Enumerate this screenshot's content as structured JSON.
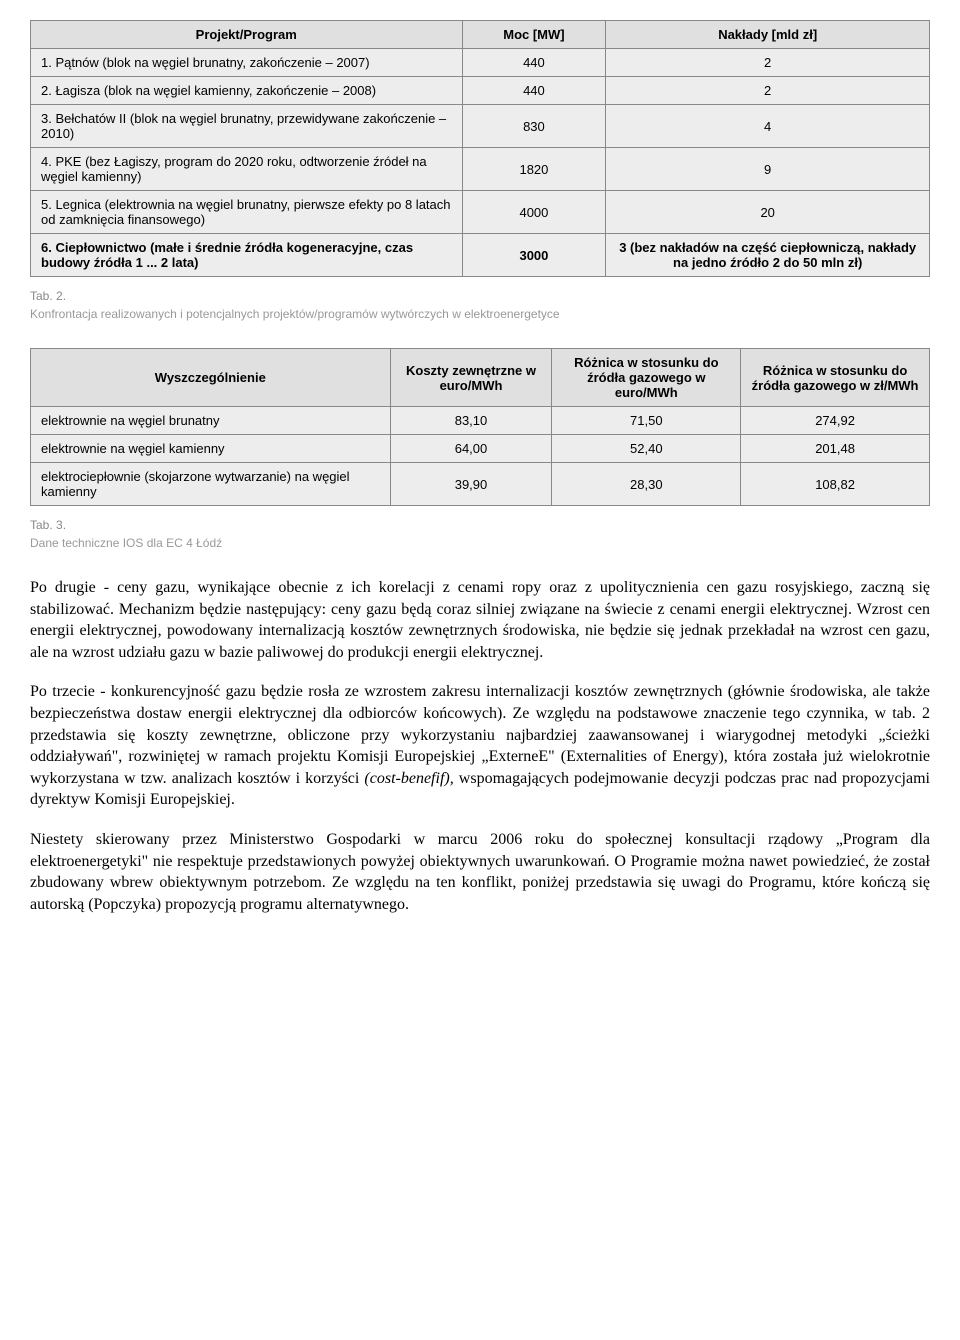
{
  "table1": {
    "col_widths": [
      "48%",
      "16%",
      "36%"
    ],
    "headers": [
      "Projekt/Program",
      "Moc [MW]",
      "Nakłady [mld zł]"
    ],
    "rows": [
      {
        "c0": "1. Pątnów (blok na węgiel brunatny, zakończenie – 2007)",
        "c1": "440",
        "c2": "2",
        "bold": false
      },
      {
        "c0": "2. Łagisza (blok na węgiel kamienny, zakończenie – 2008)",
        "c1": "440",
        "c2": "2",
        "bold": false
      },
      {
        "c0": "3. Bełchatów II (blok na węgiel brunatny, przewidywane zakończenie – 2010)",
        "c1": "830",
        "c2": "4",
        "bold": false
      },
      {
        "c0": "4. PKE (bez Łagiszy, program do 2020 roku, odtworzenie źródeł na węgiel kamienny)",
        "c1": "1820",
        "c2": "9",
        "bold": false
      },
      {
        "c0": "5. Legnica (elektrownia na węgiel brunatny, pierwsze efekty po 8 latach od zamknięcia finansowego)",
        "c1": "4000",
        "c2": "20",
        "bold": false
      },
      {
        "c0": "6. Ciepłownictwo (małe i średnie źródła kogeneracyjne, czas budowy źródła 1 ... 2 lata)",
        "c1": "3000",
        "c2": "3 (bez nakładów na część ciepłowniczą, nakłady na jedno źródło 2 do 50 mln zł)",
        "bold": true
      }
    ]
  },
  "caption1_lead": "Tab. 2.",
  "caption1_rest": "Konfrontacja realizowanych i potencjalnych projektów/programów wytwórczych w elektroenergetyce",
  "table2": {
    "col_widths": [
      "40%",
      "18%",
      "21%",
      "21%"
    ],
    "headers": [
      "Wyszczególnienie",
      "Koszty zewnętrzne w euro/MWh",
      "Różnica w stosunku do źródła gazowego w euro/MWh",
      "Różnica w stosunku do źródła gazowego w zł/MWh"
    ],
    "rows": [
      {
        "c0": "elektrownie na węgiel brunatny",
        "c1": "83,10",
        "c2": "71,50",
        "c3": "274,92"
      },
      {
        "c0": "elektrownie na węgiel kamienny",
        "c1": "64,00",
        "c2": "52,40",
        "c3": "201,48"
      },
      {
        "c0": "elektrociepłownie (skojarzone wytwarzanie) na węgiel kamienny",
        "c1": "39,90",
        "c2": "28,30",
        "c3": "108,82"
      }
    ]
  },
  "caption2_lead": "Tab. 3.",
  "caption2_rest": "Dane techniczne IOS dla EC 4 Łódź",
  "para1": "Po drugie - ceny gazu, wynikające obecnie z ich korelacji z cenami ropy oraz z upolitycznienia cen gazu rosyjskiego, zaczną się stabilizować. Mechanizm będzie następujący: ceny gazu będą coraz silniej związane na świecie z cenami energii elektrycznej. Wzrost cen energii elektrycznej, powodowany internalizacją kosztów zewnętrznych środowiska, nie będzie się jednak przekładał na wzrost cen gazu, ale na wzrost udziału gazu w bazie paliwowej do produkcji energii elektrycznej.",
  "para2": "Po trzecie - konkurencyjność gazu będzie rosła ze wzrostem zakresu internalizacji kosztów zewnętrznych (głównie środowiska, ale także bezpieczeństwa dostaw energii elektrycznej dla odbiorców końcowych). Ze względu na podstawowe znaczenie tego czynnika, w tab. 2 przedstawia się koszty zewnętrzne, obliczone przy wykorzystaniu najbardziej zaawansowanej i wiarygodnej metodyki „ścieżki oddziaływań\", rozwiniętej w ramach projektu Komisji Europejskiej „ExterneE\" (Externalities of Energy), która została już wielokrotnie wykorzystana w tzw. analizach kosztów i korzyści ",
  "para2_ital": "(cost-benefif),",
  "para2_cont": " wspomagających podejmowanie decyzji podczas prac nad propozycjami dyrektyw Komisji Europejskiej.",
  "para3": "Niestety skierowany przez Ministerstwo Gospodarki w marcu 2006 roku do społecznej konsultacji rządowy „Program dla elektroenergetyki\" nie respektuje przedstawionych powyżej obiektywnych uwarunkowań. O Programie można nawet powiedzieć, że został zbudowany wbrew obiektywnym potrzebom. Ze względu na ten konflikt, poniżej przedstawia się uwagi do Programu, które kończą się autorską (Popczyka) propozycją programu alternatywnego."
}
